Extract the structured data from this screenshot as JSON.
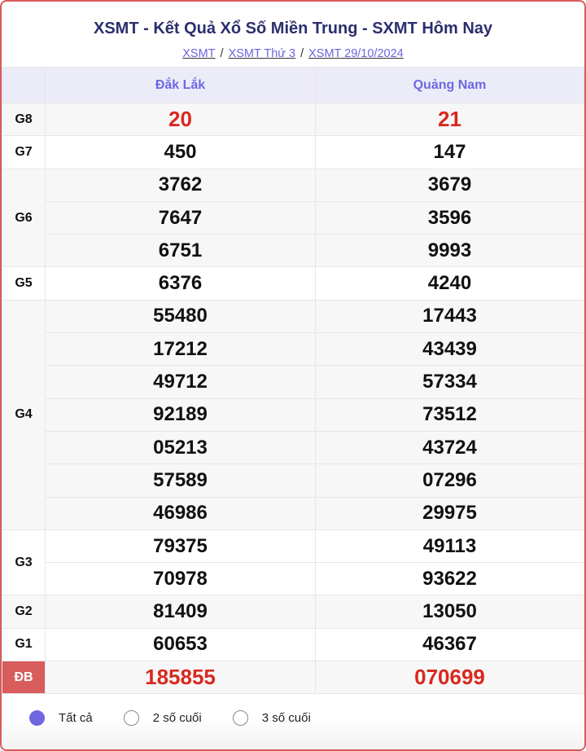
{
  "header": {
    "title": "XSMT - Kết Quả Xổ Số Miền Trung - SXMT Hôm Nay",
    "breadcrumb": [
      "XSMT",
      "XSMT Thứ 3",
      "XSMT 29/10/2024"
    ],
    "separator": "/"
  },
  "columns": [
    "Đắk Lắk",
    "Quảng Nam"
  ],
  "prizes": [
    {
      "label": "G8",
      "values": [
        [
          "20"
        ],
        [
          "21"
        ]
      ],
      "highlight": true
    },
    {
      "label": "G7",
      "values": [
        [
          "450"
        ],
        [
          "147"
        ]
      ]
    },
    {
      "label": "G6",
      "values": [
        [
          "3762",
          "7647",
          "6751"
        ],
        [
          "3679",
          "3596",
          "9993"
        ]
      ]
    },
    {
      "label": "G5",
      "values": [
        [
          "6376"
        ],
        [
          "4240"
        ]
      ]
    },
    {
      "label": "G4",
      "values": [
        [
          "55480",
          "17212",
          "49712",
          "92189",
          "05213",
          "57589",
          "46986"
        ],
        [
          "17443",
          "43439",
          "57334",
          "73512",
          "43724",
          "07296",
          "29975"
        ]
      ]
    },
    {
      "label": "G3",
      "values": [
        [
          "79375",
          "70978"
        ],
        [
          "49113",
          "93622"
        ]
      ]
    },
    {
      "label": "G2",
      "values": [
        [
          "81409"
        ],
        [
          "13050"
        ]
      ]
    },
    {
      "label": "G1",
      "values": [
        [
          "60653"
        ],
        [
          "46367"
        ]
      ]
    },
    {
      "label": "ĐB",
      "values": [
        [
          "185855"
        ],
        [
          "070699"
        ]
      ],
      "highlight": true,
      "special": true
    }
  ],
  "filters": [
    {
      "label": "Tất cả",
      "selected": true
    },
    {
      "label": "2 số cuối",
      "selected": false
    },
    {
      "label": "3 số cuối",
      "selected": false
    }
  ],
  "colors": {
    "accent": "#6f67e2",
    "title": "#2b2f6e",
    "prize_red": "#d8281f",
    "border": "#d95c5c"
  }
}
